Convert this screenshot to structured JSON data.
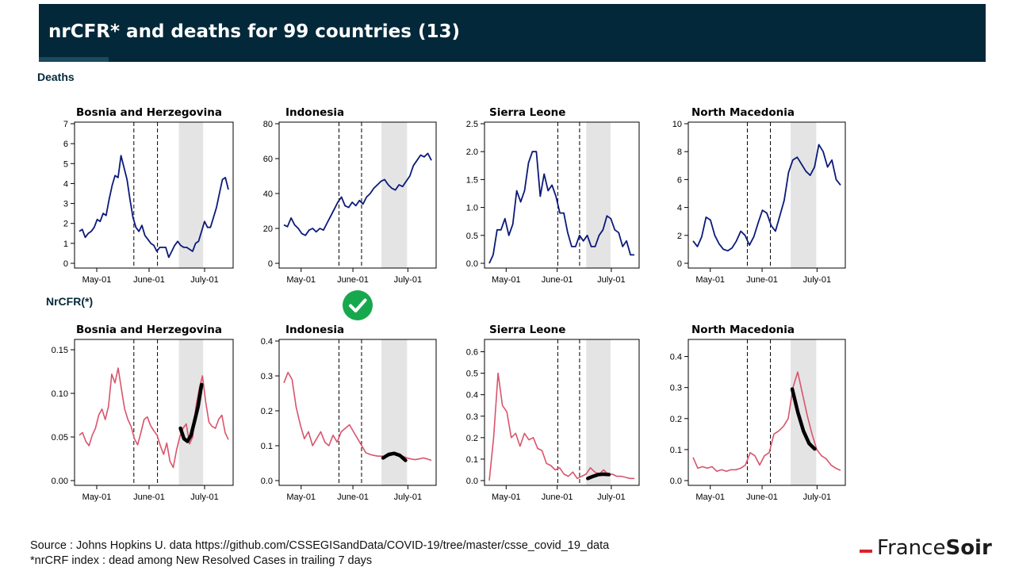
{
  "header": {
    "title": "nrCFR* and deaths for 99 countries (13)"
  },
  "sections": {
    "deaths": "Deaths",
    "nrcfr": "NrCFR(*)"
  },
  "footer": {
    "source": "Source : Johns Hopkins U. data https://github.com/CSSEGISandData/COVID-19/tree/master/csse_covid_19_data",
    "note": "*nrCRF index : dead among New Resolved  Cases in trailing 7 days"
  },
  "brand": {
    "part1": "France",
    "part2": "Soir"
  },
  "colors": {
    "header_bg": "#03283a",
    "deaths_line": "#0b1a7a",
    "nrcfr_line": "#d9546c",
    "fit_line": "#000000",
    "shade": "#e4e4e4",
    "check": "#17a84d",
    "brand_accent": "#d8232a"
  },
  "icons": {
    "check": "check-circle-icon"
  },
  "chart_data": [
    {
      "type": "line",
      "title": "Bosnia and Herzegovina",
      "x_ticks": [
        "May-01",
        "June-01",
        "July-01"
      ],
      "ylim": [
        0,
        7
      ],
      "y_ticks": [
        0,
        1,
        2,
        3,
        4,
        5,
        6,
        7
      ],
      "series": [
        {
          "values": [
            1.6,
            1.7,
            1.3,
            1.5,
            1.6,
            1.8,
            2.2,
            2.1,
            2.5,
            2.4,
            3.2,
            3.9,
            4.4,
            4.3,
            5.4,
            4.8,
            4.2,
            3.2,
            2.3,
            1.8,
            1.6,
            1.9,
            1.4,
            1.2,
            1.0,
            0.9,
            0.6,
            0.8,
            0.8,
            0.8,
            0.3,
            0.6,
            0.9,
            1.1,
            0.9,
            0.8,
            0.8,
            0.7,
            0.6,
            1.0,
            1.1,
            1.6,
            2.1,
            1.8,
            1.8,
            2.3,
            2.8,
            3.5,
            4.2,
            4.3,
            3.7
          ]
        }
      ],
      "shade": [
        0.658,
        0.811
      ],
      "vlines": [
        0.374,
        0.523
      ]
    },
    {
      "type": "line",
      "title": "Indonesia",
      "x_ticks": [
        "May-01",
        "June-01",
        "July-01"
      ],
      "ylim": [
        0,
        80
      ],
      "y_ticks": [
        0,
        20,
        40,
        60,
        80
      ],
      "series": [
        {
          "values": [
            22,
            21,
            26,
            22,
            20,
            17,
            16,
            19,
            20,
            18,
            20,
            19,
            23,
            27,
            31,
            35,
            38,
            33,
            32,
            35,
            33,
            36,
            34,
            38,
            40,
            43,
            45,
            47,
            48,
            45,
            43,
            42,
            45,
            44,
            47,
            50,
            56,
            59,
            62,
            61,
            63,
            59
          ]
        }
      ],
      "shade": [
        0.652,
        0.815
      ],
      "vlines": [
        0.381,
        0.525
      ]
    },
    {
      "type": "line",
      "title": "Sierra Leone",
      "x_ticks": [
        "May-01",
        "June-01",
        "July-01"
      ],
      "ylim": [
        0,
        2.5
      ],
      "y_ticks": [
        0.0,
        0.5,
        1.0,
        1.5,
        2.0,
        2.5
      ],
      "series": [
        {
          "values": [
            0.0,
            0.15,
            0.6,
            0.6,
            0.8,
            0.5,
            0.7,
            1.3,
            1.1,
            1.3,
            1.8,
            2.0,
            2.0,
            1.2,
            1.6,
            1.3,
            1.4,
            1.2,
            0.9,
            0.9,
            0.55,
            0.3,
            0.3,
            0.5,
            0.4,
            0.5,
            0.3,
            0.3,
            0.5,
            0.6,
            0.85,
            0.8,
            0.6,
            0.55,
            0.3,
            0.4,
            0.15,
            0.15
          ]
        }
      ],
      "shade": [
        0.658,
        0.815
      ],
      "vlines": [
        0.474,
        0.615
      ]
    },
    {
      "type": "line",
      "title": "North Macedonia",
      "x_ticks": [
        "May-01",
        "June-01",
        "July-01"
      ],
      "ylim": [
        0,
        10
      ],
      "y_ticks": [
        0,
        2,
        4,
        6,
        8,
        10
      ],
      "series": [
        {
          "values": [
            1.6,
            1.2,
            1.9,
            3.3,
            3.1,
            2.0,
            1.4,
            1.0,
            0.9,
            1.1,
            1.6,
            2.3,
            2.0,
            1.3,
            1.9,
            2.9,
            3.8,
            3.6,
            2.7,
            2.3,
            3.4,
            4.5,
            6.5,
            7.4,
            7.6,
            7.1,
            6.6,
            6.3,
            6.9,
            8.5,
            8.0,
            6.9,
            7.4,
            6.0,
            5.6
          ]
        }
      ],
      "shade": [
        0.652,
        0.815
      ],
      "vlines": [
        0.376,
        0.523
      ]
    },
    {
      "type": "line",
      "title": "Bosnia and Herzegovina",
      "x_ticks": [
        "May-01",
        "June-01",
        "July-01"
      ],
      "ylim": [
        0,
        0.16
      ],
      "y_ticks": [
        0.0,
        0.05,
        0.1,
        0.15
      ],
      "series": [
        {
          "values": [
            0.052,
            0.055,
            0.045,
            0.04,
            0.052,
            0.06,
            0.075,
            0.082,
            0.07,
            0.085,
            0.122,
            0.112,
            0.129,
            0.105,
            0.082,
            0.07,
            0.062,
            0.048,
            0.041,
            0.055,
            0.07,
            0.073,
            0.063,
            0.057,
            0.052,
            0.04,
            0.03,
            0.043,
            0.022,
            0.015,
            0.035,
            0.05,
            0.06,
            0.065,
            0.042,
            0.05,
            0.085,
            0.105,
            0.12,
            0.09,
            0.067,
            0.062,
            0.06,
            0.07,
            0.075,
            0.055,
            0.047
          ]
        },
        {
          "values": [
            0.06,
            0.048,
            0.045,
            0.052,
            0.068,
            0.085,
            0.11
          ]
        }
      ],
      "shade": [
        0.658,
        0.811
      ],
      "vlines": [
        0.374,
        0.523
      ]
    },
    {
      "type": "line",
      "title": "Indonesia",
      "x_ticks": [
        "May-01",
        "June-01",
        "July-01"
      ],
      "ylim": [
        0,
        0.4
      ],
      "y_ticks": [
        0.0,
        0.1,
        0.2,
        0.3,
        0.4
      ],
      "series": [
        {
          "values": [
            0.28,
            0.31,
            0.29,
            0.21,
            0.16,
            0.12,
            0.14,
            0.1,
            0.12,
            0.14,
            0.11,
            0.1,
            0.13,
            0.11,
            0.14,
            0.15,
            0.16,
            0.14,
            0.12,
            0.1,
            0.08,
            0.075,
            0.072,
            0.07,
            0.07,
            0.068,
            0.072,
            0.078,
            0.075,
            0.07,
            0.065,
            0.062,
            0.06,
            0.062,
            0.065,
            0.062,
            0.058
          ]
        },
        {
          "values": [
            0.065,
            0.075,
            0.078,
            0.072,
            0.058
          ]
        }
      ],
      "shade": [
        0.652,
        0.815
      ],
      "vlines": [
        0.381,
        0.525
      ]
    },
    {
      "type": "line",
      "title": "Sierra Leone",
      "x_ticks": [
        "May-01",
        "June-01",
        "July-01"
      ],
      "ylim": [
        0,
        0.65
      ],
      "y_ticks": [
        0.0,
        0.1,
        0.2,
        0.3,
        0.4,
        0.5,
        0.6
      ],
      "series": [
        {
          "values": [
            0.0,
            0.2,
            0.5,
            0.35,
            0.32,
            0.2,
            0.22,
            0.16,
            0.22,
            0.19,
            0.2,
            0.15,
            0.14,
            0.08,
            0.07,
            0.05,
            0.06,
            0.03,
            0.02,
            0.04,
            0.01,
            0.02,
            0.03,
            0.06,
            0.04,
            0.03,
            0.05,
            0.03,
            0.03,
            0.02,
            0.02,
            0.015,
            0.01,
            0.01
          ]
        },
        {
          "values": [
            0.01,
            0.02,
            0.028,
            0.03,
            0.028
          ]
        }
      ],
      "shade": [
        0.658,
        0.815
      ],
      "vlines": [
        0.474,
        0.615
      ]
    },
    {
      "type": "line",
      "title": "North Macedonia",
      "x_ticks": [
        "May-01",
        "June-01",
        "July-01"
      ],
      "ylim": [
        0,
        0.45
      ],
      "y_ticks": [
        0.0,
        0.1,
        0.2,
        0.3,
        0.4
      ],
      "series": [
        {
          "values": [
            0.075,
            0.04,
            0.045,
            0.04,
            0.045,
            0.03,
            0.035,
            0.03,
            0.035,
            0.035,
            0.04,
            0.05,
            0.09,
            0.08,
            0.05,
            0.08,
            0.09,
            0.15,
            0.16,
            0.175,
            0.2,
            0.3,
            0.35,
            0.28,
            0.21,
            0.15,
            0.1,
            0.08,
            0.07,
            0.05,
            0.04,
            0.033
          ]
        },
        {
          "values": [
            0.295,
            0.22,
            0.16,
            0.12,
            0.102
          ]
        }
      ],
      "shade": [
        0.652,
        0.815
      ],
      "vlines": [
        0.376,
        0.523
      ]
    }
  ]
}
